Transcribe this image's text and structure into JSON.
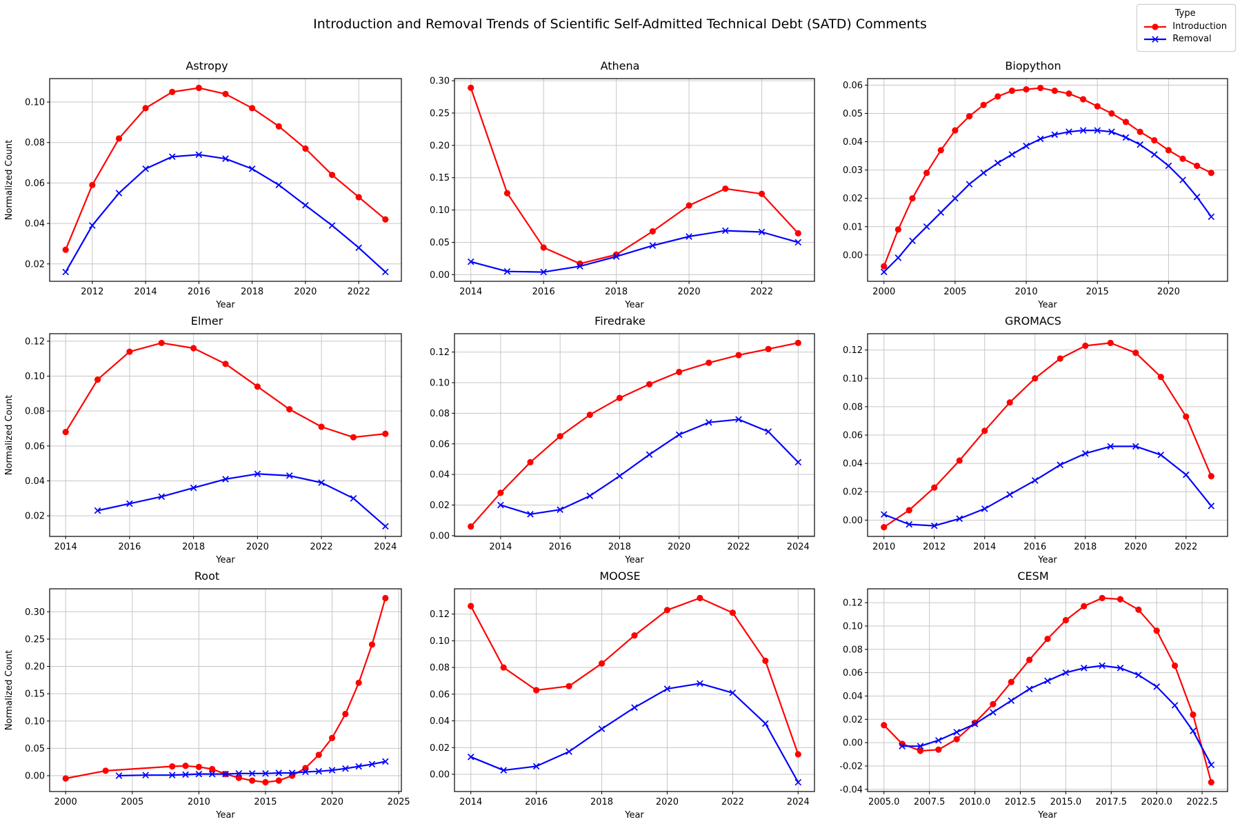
{
  "title": "Introduction and Removal Trends of Scientific Self-Admitted Technical Debt (SATD) Comments",
  "legend": {
    "title": "Type",
    "items": [
      {
        "label": "Introduction",
        "color": "#ff0000",
        "marker": "circle"
      },
      {
        "label": "Removal",
        "color": "#0000ff",
        "marker": "x"
      }
    ]
  },
  "colors": {
    "introduction": "#ff0000",
    "removal": "#0000ff",
    "grid": "#c6c6c6",
    "frame": "#000000"
  },
  "chart_data": [
    {
      "type": "line",
      "title": "Astropy",
      "xlabel": "Year",
      "ylabel": "Normalized Count",
      "xlim": [
        2010.4,
        2023.6
      ],
      "ylim": [
        0.0114,
        0.1116
      ],
      "xticks": [
        2012,
        2014,
        2016,
        2018,
        2020,
        2022
      ],
      "xtick_labels": [
        "2012",
        "2014",
        "2016",
        "2018",
        "2020",
        "2022"
      ],
      "yticks": [
        0.02,
        0.04,
        0.06,
        0.08,
        0.1
      ],
      "ytick_labels": [
        "0.02",
        "0.04",
        "0.06",
        "0.08",
        "0.10"
      ],
      "series": [
        {
          "name": "Introduction",
          "x": [
            2011,
            2012,
            2013,
            2014,
            2015,
            2016,
            2017,
            2018,
            2019,
            2020,
            2021,
            2022,
            2023
          ],
          "y": [
            0.027,
            0.059,
            0.082,
            0.097,
            0.105,
            0.107,
            0.104,
            0.097,
            0.088,
            0.077,
            0.064,
            0.053,
            0.042
          ]
        },
        {
          "name": "Removal",
          "x": [
            2011,
            2012,
            2013,
            2014,
            2015,
            2016,
            2017,
            2018,
            2019,
            2020,
            2021,
            2022,
            2023
          ],
          "y": [
            0.016,
            0.039,
            0.055,
            0.067,
            0.073,
            0.074,
            0.072,
            0.067,
            0.059,
            0.049,
            0.039,
            0.028,
            0.016
          ]
        }
      ]
    },
    {
      "type": "line",
      "title": "Athena",
      "xlabel": "Year",
      "ylabel": "",
      "xlim": [
        2013.55,
        2023.45
      ],
      "ylim": [
        -0.0103,
        0.3033
      ],
      "xticks": [
        2014,
        2016,
        2018,
        2020,
        2022
      ],
      "xtick_labels": [
        "2014",
        "2016",
        "2018",
        "2020",
        "2022"
      ],
      "yticks": [
        0.0,
        0.05,
        0.1,
        0.15,
        0.2,
        0.25,
        0.3
      ],
      "ytick_labels": [
        "0.00",
        "0.05",
        "0.10",
        "0.15",
        "0.20",
        "0.25",
        "0.30"
      ],
      "series": [
        {
          "name": "Introduction",
          "x": [
            2014,
            2015,
            2016,
            2017,
            2018,
            2019,
            2020,
            2021,
            2022,
            2023
          ],
          "y": [
            0.289,
            0.126,
            0.042,
            0.017,
            0.031,
            0.067,
            0.107,
            0.133,
            0.125,
            0.064
          ]
        },
        {
          "name": "Removal",
          "x": [
            2014,
            2015,
            2016,
            2017,
            2018,
            2019,
            2020,
            2021,
            2022,
            2023
          ],
          "y": [
            0.02,
            0.005,
            0.004,
            0.013,
            0.028,
            0.045,
            0.059,
            0.068,
            0.066,
            0.05
          ]
        }
      ]
    },
    {
      "type": "line",
      "title": "Biopython",
      "xlabel": "Year",
      "ylabel": "",
      "xlim": [
        1998.85,
        2024.15
      ],
      "ylim": [
        -0.0093,
        0.0623
      ],
      "xticks": [
        2000,
        2005,
        2010,
        2015,
        2020
      ],
      "xtick_labels": [
        "2000",
        "2005",
        "2010",
        "2015",
        "2020"
      ],
      "yticks": [
        0.0,
        0.01,
        0.02,
        0.03,
        0.04,
        0.05,
        0.06
      ],
      "ytick_labels": [
        "0.00",
        "0.01",
        "0.02",
        "0.03",
        "0.04",
        "0.05",
        "0.06"
      ],
      "series": [
        {
          "name": "Introduction",
          "x": [
            2000,
            2001,
            2002,
            2003,
            2004,
            2005,
            2006,
            2007,
            2008,
            2009,
            2010,
            2011,
            2012,
            2013,
            2014,
            2015,
            2016,
            2017,
            2018,
            2019,
            2020,
            2021,
            2022,
            2023
          ],
          "y": [
            -0.004,
            0.009,
            0.02,
            0.029,
            0.037,
            0.044,
            0.049,
            0.053,
            0.056,
            0.058,
            0.0585,
            0.059,
            0.058,
            0.057,
            0.055,
            0.0525,
            0.05,
            0.047,
            0.0435,
            0.0405,
            0.037,
            0.034,
            0.0315,
            0.029
          ]
        },
        {
          "name": "Removal",
          "x": [
            2000,
            2001,
            2002,
            2003,
            2004,
            2005,
            2006,
            2007,
            2008,
            2009,
            2010,
            2011,
            2012,
            2013,
            2014,
            2015,
            2016,
            2017,
            2018,
            2019,
            2020,
            2021,
            2022,
            2023
          ],
          "y": [
            -0.006,
            -0.001,
            0.005,
            0.01,
            0.015,
            0.02,
            0.025,
            0.029,
            0.0325,
            0.0355,
            0.0385,
            0.041,
            0.0425,
            0.0435,
            0.044,
            0.044,
            0.0435,
            0.0415,
            0.039,
            0.0355,
            0.0315,
            0.0265,
            0.0205,
            0.0135
          ]
        }
      ]
    },
    {
      "type": "line",
      "title": "Elmer",
      "xlabel": "Year",
      "ylabel": "Normalized Count",
      "xlim": [
        2013.5,
        2024.5
      ],
      "ylim": [
        0.0082,
        0.1243
      ],
      "xticks": [
        2014,
        2016,
        2018,
        2020,
        2022,
        2024
      ],
      "xtick_labels": [
        "2014",
        "2016",
        "2018",
        "2020",
        "2022",
        "2024"
      ],
      "yticks": [
        0.02,
        0.04,
        0.06,
        0.08,
        0.1,
        0.12
      ],
      "ytick_labels": [
        "0.02",
        "0.04",
        "0.06",
        "0.08",
        "0.10",
        "0.12"
      ],
      "series": [
        {
          "name": "Introduction",
          "x": [
            2014,
            2015,
            2016,
            2017,
            2018,
            2019,
            2020,
            2021,
            2022,
            2023,
            2024
          ],
          "y": [
            0.068,
            0.098,
            0.114,
            0.119,
            0.116,
            0.107,
            0.094,
            0.081,
            0.071,
            0.065,
            0.067
          ]
        },
        {
          "name": "Removal",
          "x": [
            2015,
            2016,
            2017,
            2018,
            2019,
            2020,
            2021,
            2022,
            2023,
            2024
          ],
          "y": [
            0.023,
            0.027,
            0.031,
            0.036,
            0.041,
            0.044,
            0.043,
            0.039,
            0.03,
            0.014
          ]
        }
      ]
    },
    {
      "type": "line",
      "title": "Firedrake",
      "xlabel": "Year",
      "ylabel": "",
      "xlim": [
        2012.45,
        2024.55
      ],
      "ylim": [
        -0.0005,
        0.132
      ],
      "xticks": [
        2014,
        2016,
        2018,
        2020,
        2022,
        2024
      ],
      "xtick_labels": [
        "2014",
        "2016",
        "2018",
        "2020",
        "2022",
        "2024"
      ],
      "yticks": [
        0.0,
        0.02,
        0.04,
        0.06,
        0.08,
        0.1,
        0.12
      ],
      "ytick_labels": [
        "0.00",
        "0.02",
        "0.04",
        "0.06",
        "0.08",
        "0.10",
        "0.12"
      ],
      "series": [
        {
          "name": "Introduction",
          "x": [
            2013,
            2014,
            2015,
            2016,
            2017,
            2018,
            2019,
            2020,
            2021,
            2022,
            2023,
            2024
          ],
          "y": [
            0.006,
            0.028,
            0.048,
            0.065,
            0.079,
            0.09,
            0.099,
            0.107,
            0.113,
            0.118,
            0.122,
            0.126
          ]
        },
        {
          "name": "Removal",
          "x": [
            2014,
            2015,
            2016,
            2017,
            2018,
            2019,
            2020,
            2021,
            2022,
            2023,
            2024
          ],
          "y": [
            0.02,
            0.014,
            0.017,
            0.026,
            0.039,
            0.053,
            0.066,
            0.074,
            0.076,
            0.068,
            0.048
          ]
        }
      ]
    },
    {
      "type": "line",
      "title": "GROMACS",
      "xlabel": "Year",
      "ylabel": "",
      "xlim": [
        2009.35,
        2023.65
      ],
      "ylim": [
        -0.0115,
        0.1315
      ],
      "xticks": [
        2010,
        2012,
        2014,
        2016,
        2018,
        2020,
        2022
      ],
      "xtick_labels": [
        "2010",
        "2012",
        "2014",
        "2016",
        "2018",
        "2020",
        "2022"
      ],
      "yticks": [
        0.0,
        0.02,
        0.04,
        0.06,
        0.08,
        0.1,
        0.12
      ],
      "ytick_labels": [
        "0.00",
        "0.02",
        "0.04",
        "0.06",
        "0.08",
        "0.10",
        "0.12"
      ],
      "series": [
        {
          "name": "Introduction",
          "x": [
            2010,
            2011,
            2012,
            2013,
            2014,
            2015,
            2016,
            2017,
            2018,
            2019,
            2020,
            2021,
            2022,
            2023
          ],
          "y": [
            -0.005,
            0.007,
            0.023,
            0.042,
            0.063,
            0.083,
            0.1,
            0.114,
            0.123,
            0.125,
            0.118,
            0.101,
            0.073,
            0.031
          ]
        },
        {
          "name": "Removal",
          "x": [
            2010,
            2011,
            2012,
            2013,
            2014,
            2015,
            2016,
            2017,
            2018,
            2019,
            2020,
            2021,
            2022,
            2023
          ],
          "y": [
            0.004,
            -0.003,
            -0.004,
            0.001,
            0.008,
            0.018,
            0.028,
            0.039,
            0.047,
            0.052,
            0.052,
            0.046,
            0.032,
            0.01
          ]
        }
      ]
    },
    {
      "type": "line",
      "title": "Root",
      "xlabel": "Year",
      "ylabel": "Normalized Count",
      "xlim": [
        1998.8,
        2025.2
      ],
      "ylim": [
        -0.029,
        0.342
      ],
      "xticks": [
        2000,
        2005,
        2010,
        2015,
        2020,
        2025
      ],
      "xtick_labels": [
        "2000",
        "2005",
        "2010",
        "2015",
        "2020",
        "2025"
      ],
      "yticks": [
        0.0,
        0.05,
        0.1,
        0.15,
        0.2,
        0.25,
        0.3
      ],
      "ytick_labels": [
        "0.00",
        "0.05",
        "0.10",
        "0.15",
        "0.20",
        "0.25",
        "0.30"
      ],
      "series": [
        {
          "name": "Introduction",
          "x": [
            2000,
            2003,
            2008,
            2009,
            2010,
            2011,
            2012,
            2013,
            2014,
            2015,
            2016,
            2017,
            2018,
            2019,
            2020,
            2021,
            2022,
            2023,
            2024
          ],
          "y": [
            -0.005,
            0.009,
            0.017,
            0.018,
            0.016,
            0.012,
            0.003,
            -0.004,
            -0.009,
            -0.012,
            -0.009,
            0.0,
            0.014,
            0.038,
            0.069,
            0.113,
            0.17,
            0.24,
            0.325
          ]
        },
        {
          "name": "Removal",
          "x": [
            2004,
            2006,
            2008,
            2009,
            2010,
            2011,
            2012,
            2013,
            2014,
            2015,
            2016,
            2017,
            2018,
            2019,
            2020,
            2021,
            2022,
            2023,
            2024
          ],
          "y": [
            0.0,
            0.001,
            0.001,
            0.002,
            0.003,
            0.003,
            0.003,
            0.004,
            0.004,
            0.004,
            0.005,
            0.005,
            0.007,
            0.008,
            0.01,
            0.013,
            0.017,
            0.021,
            0.026
          ]
        }
      ]
    },
    {
      "type": "line",
      "title": "MOOSE",
      "xlabel": "Year",
      "ylabel": "",
      "xlim": [
        2013.5,
        2024.5
      ],
      "ylim": [
        -0.0129,
        0.1389
      ],
      "xticks": [
        2014,
        2016,
        2018,
        2020,
        2022,
        2024
      ],
      "xtick_labels": [
        "2014",
        "2016",
        "2018",
        "2020",
        "2022",
        "2024"
      ],
      "yticks": [
        0.0,
        0.02,
        0.04,
        0.06,
        0.08,
        0.1,
        0.12
      ],
      "ytick_labels": [
        "0.00",
        "0.02",
        "0.04",
        "0.06",
        "0.08",
        "0.10",
        "0.12"
      ],
      "series": [
        {
          "name": "Introduction",
          "x": [
            2014,
            2015,
            2016,
            2017,
            2018,
            2019,
            2020,
            2021,
            2022,
            2023,
            2024
          ],
          "y": [
            0.126,
            0.08,
            0.063,
            0.066,
            0.083,
            0.104,
            0.123,
            0.132,
            0.121,
            0.085,
            0.015
          ]
        },
        {
          "name": "Removal",
          "x": [
            2014,
            2015,
            2016,
            2017,
            2018,
            2019,
            2020,
            2021,
            2022,
            2023,
            2024
          ],
          "y": [
            0.013,
            0.003,
            0.006,
            0.017,
            0.034,
            0.05,
            0.064,
            0.068,
            0.061,
            0.038,
            -0.006
          ]
        }
      ]
    },
    {
      "type": "line",
      "title": "CESM",
      "xlabel": "Year",
      "ylabel": "",
      "xlim": [
        2004.1,
        2023.9
      ],
      "ylim": [
        -0.0419,
        0.1319
      ],
      "xticks": [
        2005.0,
        2007.5,
        2010.0,
        2012.5,
        2015.0,
        2017.5,
        2020.0,
        2022.5
      ],
      "xtick_labels": [
        "2005.0",
        "2007.5",
        "2010.0",
        "2012.5",
        "2015.0",
        "2017.5",
        "2020.0",
        "2022.5"
      ],
      "yticks": [
        -0.04,
        -0.02,
        0.0,
        0.02,
        0.04,
        0.06,
        0.08,
        0.1,
        0.12
      ],
      "ytick_labels": [
        "-0.04",
        "-0.02",
        "0.00",
        "0.02",
        "0.04",
        "0.06",
        "0.08",
        "0.10",
        "0.12"
      ],
      "series": [
        {
          "name": "Introduction",
          "x": [
            2005,
            2006,
            2007,
            2008,
            2009,
            2010,
            2011,
            2012,
            2013,
            2014,
            2015,
            2016,
            2017,
            2018,
            2019,
            2020,
            2021,
            2022,
            2023
          ],
          "y": [
            0.015,
            -0.001,
            -0.007,
            -0.006,
            0.003,
            0.017,
            0.033,
            0.052,
            0.071,
            0.089,
            0.105,
            0.117,
            0.124,
            0.123,
            0.114,
            0.096,
            0.066,
            0.024,
            -0.034
          ]
        },
        {
          "name": "Removal",
          "x": [
            2006,
            2007,
            2008,
            2009,
            2010,
            2011,
            2012,
            2013,
            2014,
            2015,
            2016,
            2017,
            2018,
            2019,
            2020,
            2021,
            2022,
            2023
          ],
          "y": [
            -0.003,
            -0.003,
            0.002,
            0.009,
            0.016,
            0.026,
            0.036,
            0.046,
            0.053,
            0.06,
            0.064,
            0.066,
            0.064,
            0.058,
            0.048,
            0.032,
            0.01,
            -0.019
          ]
        }
      ]
    }
  ]
}
